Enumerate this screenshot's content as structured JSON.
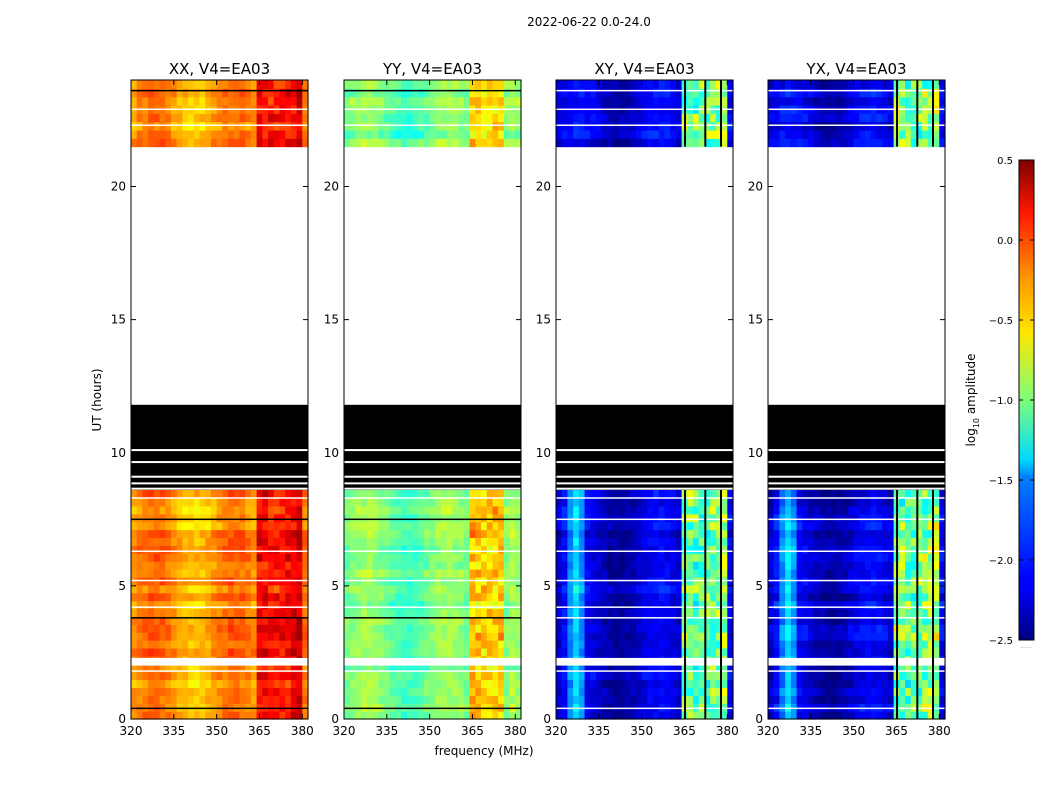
{
  "chart_data": {
    "type": "heatmap",
    "suptitle": "2022-06-22 0.0-24.0",
    "xlabel": "frequency (MHz)",
    "ylabel": "UT (hours)",
    "xlim": [
      320,
      382
    ],
    "ylim": [
      0,
      24
    ],
    "xticks": [
      320,
      335,
      350,
      365,
      380
    ],
    "yticks": [
      0,
      5,
      10,
      15,
      20
    ],
    "colormap": "jet",
    "panels": [
      {
        "id": "xx",
        "title": "XX, V4=EA03",
        "base_level": 0.72,
        "rfi_boost": 0.22,
        "rfi_channels": [
          363,
          366,
          369,
          372,
          375,
          378
        ]
      },
      {
        "id": "yy",
        "title": "YY, V4=EA03",
        "base_level": 0.48,
        "rfi_boost": 0.28,
        "rfi_channels": [
          363,
          366,
          369,
          373
        ]
      },
      {
        "id": "xy",
        "title": "XY, V4=EA03",
        "base_level": 0.08,
        "rfi_boost": 0.55,
        "rfi_channels": [
          363,
          366,
          369,
          372,
          375,
          378
        ]
      },
      {
        "id": "yx",
        "title": "YX, V4=EA03",
        "base_level": 0.08,
        "rfi_boost": 0.55,
        "rfi_channels": [
          363,
          366,
          369,
          372,
          375,
          378
        ]
      }
    ],
    "data_blocks_hours": [
      [
        0.0,
        8.6
      ],
      [
        21.5,
        24.0
      ]
    ],
    "blank_block_hours": [
      8.6,
      11.8
    ],
    "no_data_hours": [
      11.8,
      21.5
    ],
    "colorbar": {
      "label": "log$_{10}$ amplitude",
      "label_main": "log",
      "label_sub": "10",
      "label_tail": " amplitude",
      "range": [
        -2.5,
        0.5
      ],
      "ticks": [
        "0.5",
        "0.0",
        "−0.5",
        "−1.0",
        "−1.5",
        "−2.0",
        "−2.5"
      ],
      "tick_values": [
        0.5,
        0.0,
        -0.5,
        -1.0,
        -1.5,
        -2.0,
        -2.5
      ],
      "footer": "......"
    },
    "colors": {
      "blank": "#000000",
      "flag": "#ffffff"
    }
  }
}
